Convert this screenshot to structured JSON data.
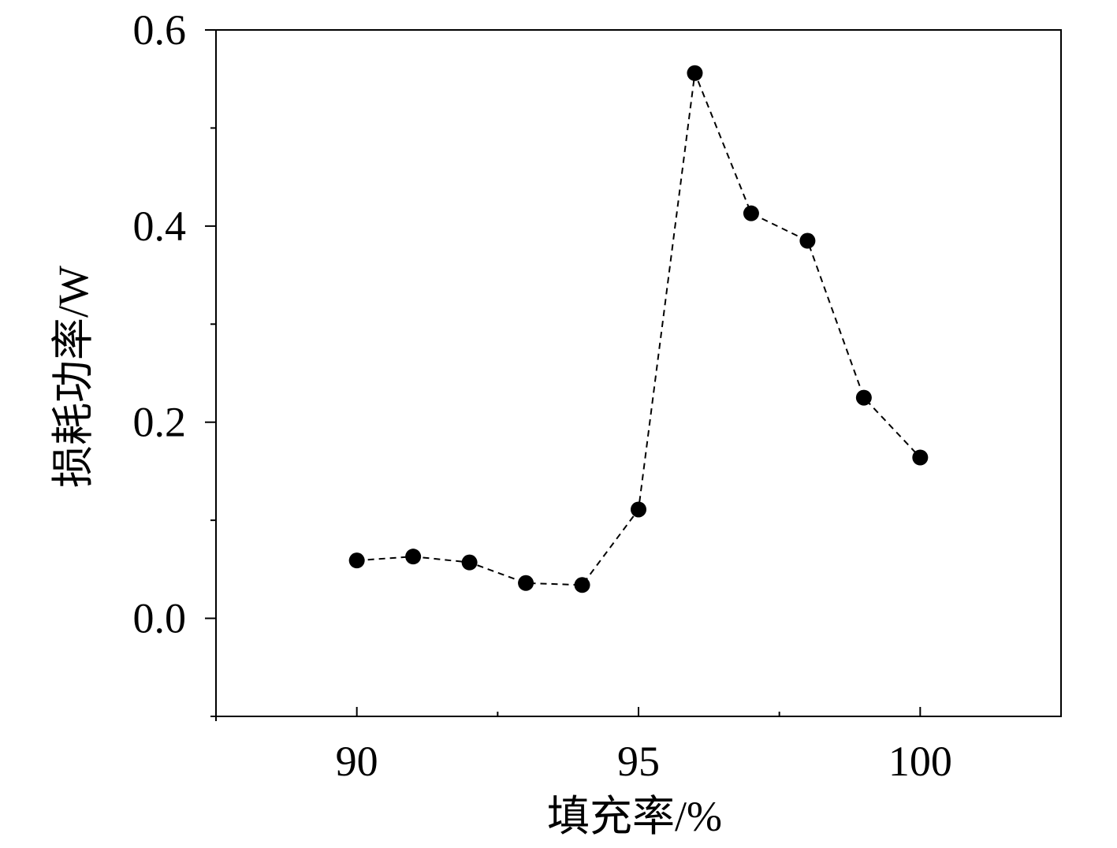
{
  "chart_data": {
    "type": "scatter",
    "title": "",
    "xlabel": "填充率/%",
    "ylabel": "损耗功率/W",
    "x_ticks": [
      90,
      95,
      100
    ],
    "x_tick_labels": [
      "90",
      "95",
      "100"
    ],
    "y_ticks": [
      0.0,
      0.2,
      0.4,
      0.6
    ],
    "y_tick_labels": [
      "0.0",
      "0.2",
      "0.4",
      "0.6"
    ],
    "xlim": [
      87.5,
      102.5
    ],
    "ylim": [
      -0.1,
      0.6
    ],
    "grid": false,
    "series": [
      {
        "marker": "filled-circle",
        "line_style": "dashed",
        "color": "#000000",
        "x": [
          90,
          91,
          92,
          93,
          94,
          95,
          96,
          97,
          98,
          99,
          100
        ],
        "y": [
          0.059,
          0.063,
          0.057,
          0.036,
          0.034,
          0.111,
          0.556,
          0.413,
          0.385,
          0.225,
          0.164
        ]
      }
    ]
  }
}
